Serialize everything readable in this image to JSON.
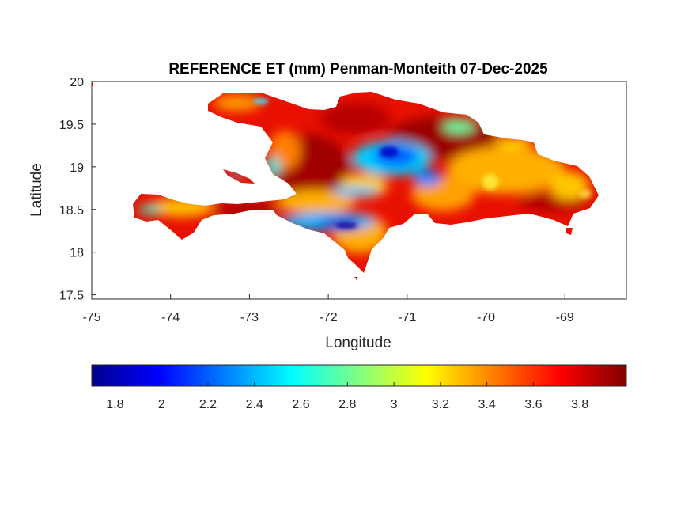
{
  "chart_data": {
    "type": "heatmap",
    "title": "REFERENCE ET (mm) Penman-Monteith 07-Dec-2025",
    "xlabel": "Longitude",
    "ylabel": "Latitude",
    "xlim": [
      -75,
      -68.22
    ],
    "ylim": [
      17.45,
      20
    ],
    "xticks": [
      -75,
      -74,
      -73,
      -72,
      -71,
      -70,
      -69
    ],
    "xtick_labels": [
      "-75",
      "-74",
      "-73",
      "-72",
      "-71",
      "-70",
      "-69"
    ],
    "yticks": [
      17.5,
      18,
      18.5,
      19,
      19.5,
      20
    ],
    "ytick_labels": [
      "17.5",
      "18",
      "18.5",
      "19",
      "19.5",
      "20"
    ],
    "colormap": "jet",
    "clim": [
      1.7,
      4.0
    ],
    "colorbar": {
      "location": "south",
      "ticks": [
        1.8,
        2,
        2.2,
        2.4,
        2.6,
        2.8,
        3,
        3.2,
        3.4,
        3.6,
        3.8
      ],
      "tick_labels": [
        "1.8",
        "2",
        "2.2",
        "2.4",
        "2.6",
        "2.8",
        "3",
        "3.2",
        "3.4",
        "3.6",
        "3.8"
      ]
    },
    "region": "Hispaniola (Haiti and Dominican Republic)",
    "value_range_shown": [
      1.8,
      3.9
    ],
    "grid": false
  }
}
